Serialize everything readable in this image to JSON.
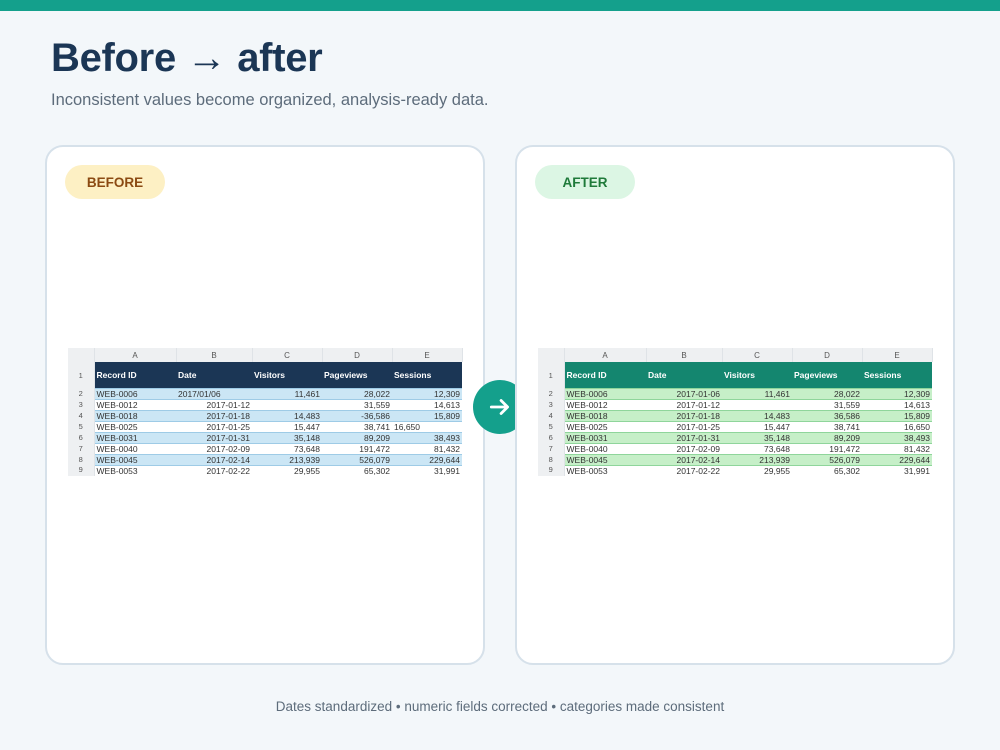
{
  "header": {
    "title": "Before → after",
    "subtitle": "Inconsistent values become organized, analysis-ready data."
  },
  "colors": {
    "accent": "#14a08c",
    "before_header": "#1b3655",
    "after_header": "#14866f",
    "before_highlight": "#cbe6f5",
    "after_highlight": "#c6efc8"
  },
  "icons": {
    "arrow": "arrow-right-icon"
  },
  "column_letters": [
    "A",
    "B",
    "C",
    "D",
    "E"
  ],
  "before": {
    "badge": "BEFORE",
    "headers": [
      "Record ID",
      "Date",
      "Visitors",
      "Pageviews",
      "Sessions"
    ],
    "rows": [
      {
        "n": "2",
        "id": "WEB-0006",
        "date": "2017/01/06",
        "visitors": "11,461",
        "pageviews": "28,022",
        "sessions": "12,309"
      },
      {
        "n": "3",
        "id": "WEB-0012",
        "date": "2017-01-12",
        "visitors": "",
        "pageviews": "31,559",
        "sessions": "14,613"
      },
      {
        "n": "4",
        "id": "WEB-0018",
        "date": "2017-01-18",
        "visitors": "14,483",
        "pageviews": "-36,586",
        "sessions": "15,809"
      },
      {
        "n": "5",
        "id": "WEB-0025",
        "date": "2017-01-25",
        "visitors": "15,447",
        "pageviews": "38,741",
        "sessions": "16,650"
      },
      {
        "n": "6",
        "id": "WEB-0031",
        "date": "2017-01-31",
        "visitors": "35,148",
        "pageviews": "89,209",
        "sessions": "38,493"
      },
      {
        "n": "7",
        "id": "WEB-0040",
        "date": "2017-02-09",
        "visitors": "73,648",
        "pageviews": "191,472",
        "sessions": "81,432"
      },
      {
        "n": "8",
        "id": "WEB-0045",
        "date": "2017-02-14",
        "visitors": "213,939",
        "pageviews": "526,079",
        "sessions": "229,644"
      },
      {
        "n": "9",
        "id": "WEB-0053",
        "date": "2017-02-22",
        "visitors": "29,955",
        "pageviews": "65,302",
        "sessions": "31,991"
      }
    ]
  },
  "after": {
    "badge": "AFTER",
    "headers": [
      "Record ID",
      "Date",
      "Visitors",
      "Pageviews",
      "Sessions"
    ],
    "rows": [
      {
        "n": "2",
        "id": "WEB-0006",
        "date": "2017-01-06",
        "visitors": "11,461",
        "pageviews": "28,022",
        "sessions": "12,309"
      },
      {
        "n": "3",
        "id": "WEB-0012",
        "date": "2017-01-12",
        "visitors": "",
        "pageviews": "31,559",
        "sessions": "14,613"
      },
      {
        "n": "4",
        "id": "WEB-0018",
        "date": "2017-01-18",
        "visitors": "14,483",
        "pageviews": "36,586",
        "sessions": "15,809"
      },
      {
        "n": "5",
        "id": "WEB-0025",
        "date": "2017-01-25",
        "visitors": "15,447",
        "pageviews": "38,741",
        "sessions": "16,650"
      },
      {
        "n": "6",
        "id": "WEB-0031",
        "date": "2017-01-31",
        "visitors": "35,148",
        "pageviews": "89,209",
        "sessions": "38,493"
      },
      {
        "n": "7",
        "id": "WEB-0040",
        "date": "2017-02-09",
        "visitors": "73,648",
        "pageviews": "191,472",
        "sessions": "81,432"
      },
      {
        "n": "8",
        "id": "WEB-0045",
        "date": "2017-02-14",
        "visitors": "213,939",
        "pageviews": "526,079",
        "sessions": "229,644"
      },
      {
        "n": "9",
        "id": "WEB-0053",
        "date": "2017-02-22",
        "visitors": "29,955",
        "pageviews": "65,302",
        "sessions": "31,991"
      }
    ]
  },
  "footer": {
    "caption": "Dates standardized • numeric fields corrected • categories made consistent"
  }
}
